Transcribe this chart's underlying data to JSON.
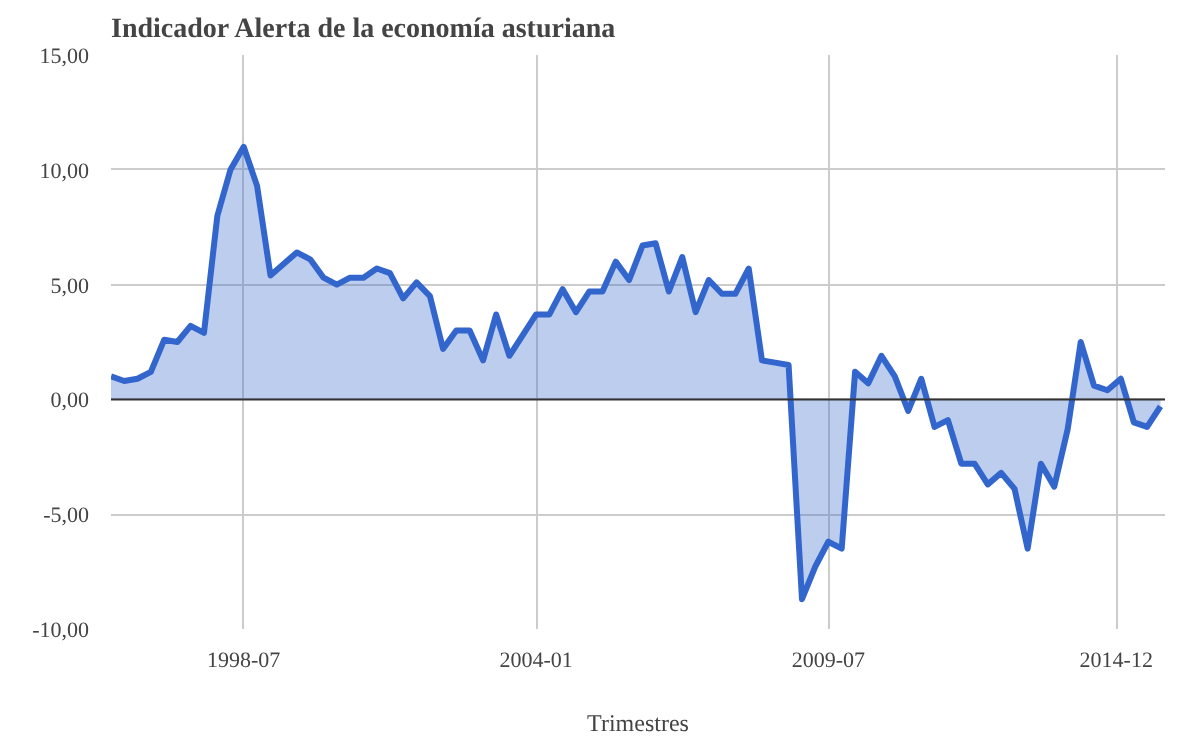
{
  "chart_data": {
    "type": "area",
    "title": "Indicador Alerta de la economía asturiana",
    "xlabel": "Trimestres",
    "x": [
      "1996-01",
      "1996-04",
      "1996-07",
      "1996-10",
      "1997-01",
      "1997-04",
      "1997-07",
      "1997-10",
      "1998-01",
      "1998-04",
      "1998-07",
      "1998-10",
      "1999-01",
      "1999-04",
      "1999-07",
      "1999-10",
      "2000-01",
      "2000-04",
      "2000-07",
      "2000-10",
      "2001-01",
      "2001-04",
      "2001-07",
      "2001-10",
      "2002-01",
      "2002-04",
      "2002-07",
      "2002-10",
      "2003-01",
      "2003-04",
      "2003-07",
      "2003-10",
      "2004-01",
      "2004-04",
      "2004-07",
      "2004-10",
      "2005-01",
      "2005-04",
      "2005-07",
      "2005-10",
      "2006-01",
      "2006-04",
      "2006-07",
      "2006-10",
      "2007-01",
      "2007-04",
      "2007-07",
      "2007-10",
      "2008-01",
      "2008-04",
      "2008-07",
      "2008-10",
      "2009-01",
      "2009-04",
      "2009-07",
      "2009-10",
      "2010-01",
      "2010-04",
      "2010-07",
      "2010-10",
      "2011-01",
      "2011-04",
      "2011-07",
      "2011-10",
      "2012-01",
      "2012-04",
      "2012-07",
      "2012-10",
      "2013-01",
      "2013-04",
      "2013-07",
      "2013-10",
      "2014-01",
      "2014-04",
      "2014-07",
      "2014-10",
      "2015-01",
      "2015-04",
      "2015-07",
      "2015-10"
    ],
    "series": [
      {
        "color": "#3366cc",
        "values": [
          1.0,
          0.8,
          0.9,
          1.2,
          2.6,
          2.5,
          3.2,
          2.9,
          8.0,
          10.0,
          11.0,
          9.3,
          5.4,
          5.9,
          6.4,
          6.1,
          5.3,
          5.0,
          5.3,
          5.3,
          5.7,
          5.5,
          4.4,
          5.1,
          4.5,
          2.2,
          3.0,
          3.0,
          1.7,
          3.7,
          1.9,
          2.8,
          3.7,
          3.7,
          4.8,
          3.8,
          4.7,
          4.7,
          6.0,
          5.2,
          6.7,
          6.8,
          4.7,
          6.2,
          3.8,
          5.2,
          4.6,
          4.6,
          5.7,
          1.7,
          1.6,
          1.5,
          -8.7,
          -7.3,
          -6.2,
          -6.5,
          1.2,
          0.7,
          1.9,
          1.0,
          -0.5,
          0.9,
          -1.2,
          -0.9,
          -2.8,
          -2.8,
          -3.7,
          -3.2,
          -3.9,
          -6.5,
          -2.8,
          -3.8,
          -1.3,
          2.5,
          0.6,
          0.4,
          0.9,
          -1.0,
          -1.2,
          -0.3
        ]
      }
    ],
    "xlim": [
      "1996-01",
      "2015-11"
    ],
    "xticks": [
      "1998-07",
      "2004-01",
      "2009-07",
      "2014-12"
    ],
    "ylim": [
      -10,
      15
    ],
    "yticks": [
      {
        "value": -10,
        "label": "-10,00"
      },
      {
        "value": -5,
        "label": "-5,00"
      },
      {
        "value": 0,
        "label": "0,00"
      },
      {
        "value": 5,
        "label": "5,00"
      },
      {
        "value": 10,
        "label": "10,00"
      },
      {
        "value": 15,
        "label": "15,00"
      }
    ],
    "ref_lines": [
      {
        "axis": "y",
        "value": 0,
        "color": "#333333"
      }
    ],
    "grid": true
  }
}
